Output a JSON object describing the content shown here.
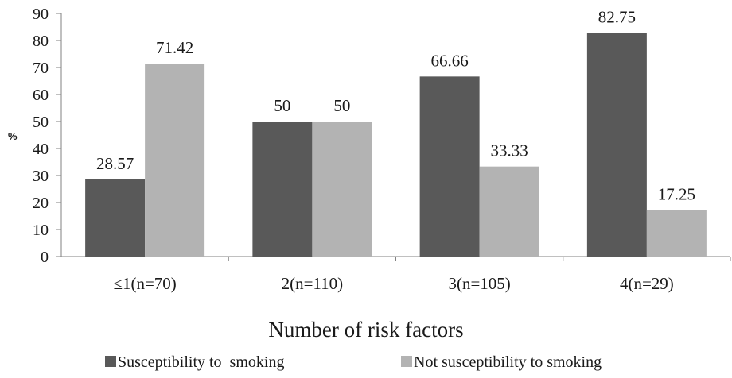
{
  "chart_data": {
    "type": "bar",
    "categories": [
      "≤1(n=70)",
      "2(n=110)",
      "3(n=105)",
      "4(n=29)"
    ],
    "series": [
      {
        "name": "Susceptibility to  smoking",
        "values": [
          28.57,
          50,
          66.66,
          82.75
        ],
        "color": "#595959"
      },
      {
        "name": "Not susceptibility to smoking",
        "values": [
          71.42,
          50,
          33.33,
          17.25
        ],
        "color": "#b3b3b3"
      }
    ],
    "data_labels": [
      [
        "28.57",
        "50",
        "66.66",
        "82.75"
      ],
      [
        "71.42",
        "50",
        "33.33",
        "17.25"
      ]
    ],
    "xlabel": "Number of  risk factors",
    "ylabel": "%",
    "ylim": [
      0,
      90
    ],
    "yticks": [
      0,
      10,
      20,
      30,
      40,
      50,
      60,
      70,
      80,
      90
    ],
    "grid": false,
    "legend_position": "bottom"
  }
}
